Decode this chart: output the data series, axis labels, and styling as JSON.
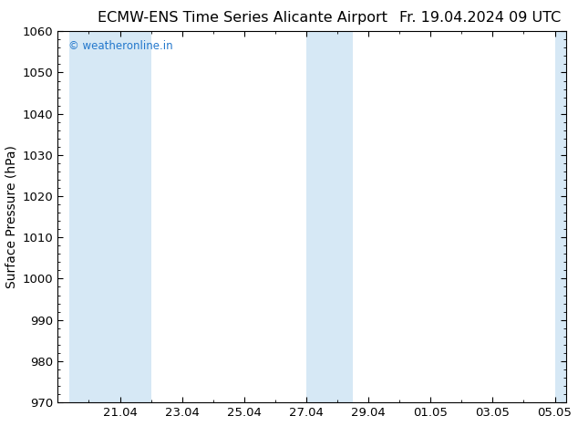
{
  "title_center": "ECMW-ENS Time Series Alicante Airport",
  "title_right": "Fr. 19.04.2024 09 UTC",
  "ylabel": "Surface Pressure (hPa)",
  "ylim": [
    970,
    1060
  ],
  "yticks": [
    970,
    980,
    990,
    1000,
    1010,
    1020,
    1030,
    1040,
    1050,
    1060
  ],
  "xtick_labels": [
    "21.04",
    "23.04",
    "25.04",
    "27.04",
    "29.04",
    "01.05",
    "03.05",
    "05.05"
  ],
  "band_color": "#d6e8f5",
  "background_color": "#ffffff",
  "watermark_text": "© weatheronline.in",
  "watermark_color": "#2277cc",
  "title_fontsize": 11.5,
  "axis_label_fontsize": 10,
  "tick_fontsize": 9.5
}
